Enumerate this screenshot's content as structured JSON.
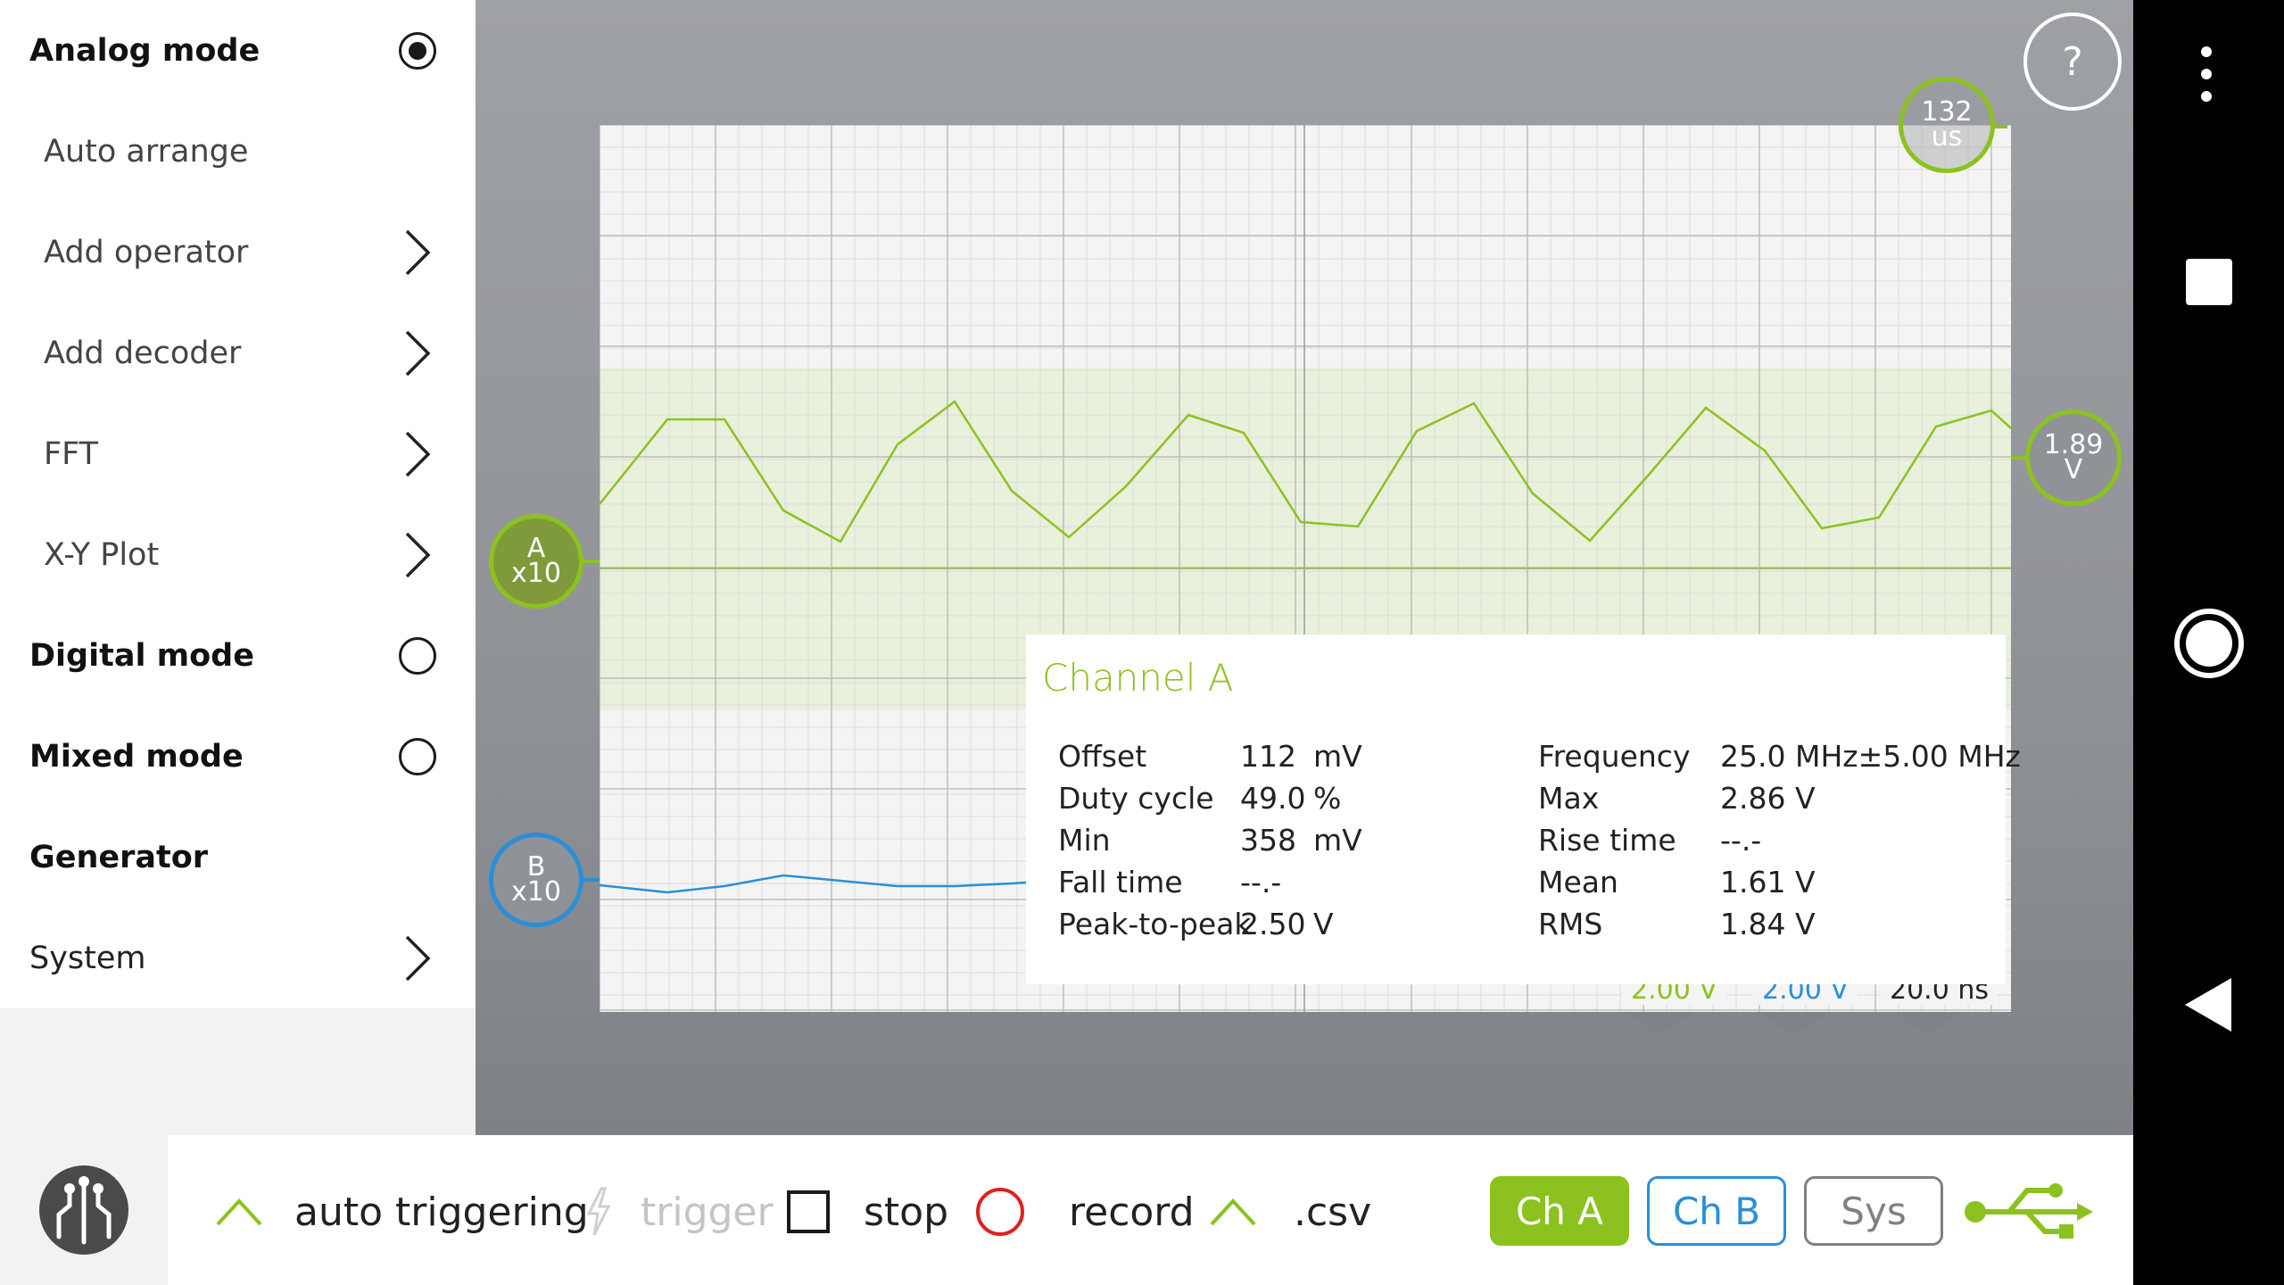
{
  "drawer": {
    "items": [
      {
        "label": "Analog mode",
        "type": "heading",
        "control": "radio-on"
      },
      {
        "label": "Auto arrange",
        "type": "sub",
        "control": "none"
      },
      {
        "label": "Add operator",
        "type": "sub",
        "control": "chevron"
      },
      {
        "label": "Add decoder",
        "type": "sub",
        "control": "chevron"
      },
      {
        "label": "FFT",
        "type": "sub",
        "control": "chevron"
      },
      {
        "label": "X-Y Plot",
        "type": "sub",
        "control": "chevron"
      },
      {
        "label": "Digital mode",
        "type": "heading",
        "control": "radio-off"
      },
      {
        "label": "Mixed mode",
        "type": "heading",
        "control": "radio-off"
      },
      {
        "label": "Generator",
        "type": "heading",
        "control": "none"
      },
      {
        "label": "System",
        "type": "plain",
        "control": "chevron"
      }
    ]
  },
  "markers": {
    "channel_a": {
      "line1": "A",
      "line2": "x10",
      "color": "#8cc21f"
    },
    "channel_b": {
      "line1": "B",
      "line2": "x10",
      "color": "#2a8fd8"
    },
    "time": {
      "line1": "132",
      "line2": "us"
    },
    "trigger_level": {
      "line1": "1.89",
      "line2": "V"
    },
    "help": "?"
  },
  "scale_labels": {
    "ch_a": "2.00 V",
    "ch_b": "2.00 V",
    "time": "20.0 ns"
  },
  "info_panel": {
    "title": "Channel A",
    "left": [
      {
        "name": "Offset",
        "value": "112",
        "unit": "mV"
      },
      {
        "name": "Duty cycle",
        "value": "49.0",
        "unit": "%"
      },
      {
        "name": "Min",
        "value": "358",
        "unit": "mV"
      },
      {
        "name": "Fall time",
        "value": "--.-",
        "unit": ""
      },
      {
        "name": "Peak-to-peak",
        "value": "2.50",
        "unit": "V"
      }
    ],
    "right": [
      {
        "name": "Frequency",
        "value": "25.0",
        "unit": "MHz±5.00  MHz"
      },
      {
        "name": "Max",
        "value": "2.86",
        "unit": "V"
      },
      {
        "name": "Rise time",
        "value": "--.-",
        "unit": ""
      },
      {
        "name": "Mean",
        "value": "1.61",
        "unit": "V"
      },
      {
        "name": "RMS",
        "value": "1.84",
        "unit": "V"
      }
    ]
  },
  "toolbar": {
    "auto_triggering": "auto triggering",
    "trigger": "trigger",
    "stop": "stop",
    "record": "record",
    "csv": ".csv",
    "ch_a": "Ch A",
    "ch_b": "Ch B",
    "sys": "Sys"
  },
  "colors": {
    "accent_green": "#8cc21f",
    "accent_blue": "#2a8fd8",
    "record_red": "#e0201b"
  }
}
